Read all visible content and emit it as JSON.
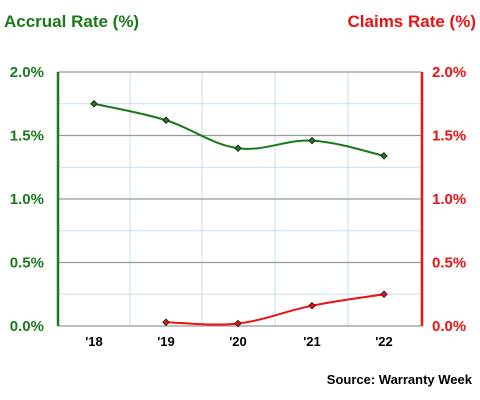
{
  "chart_data": {
    "type": "line",
    "categories": [
      "'18",
      "'19",
      "'20",
      "'21",
      "'22"
    ],
    "series": [
      {
        "name": "Accrual Rate (%)",
        "axis": "left",
        "color": "#1a7a1a",
        "values": [
          1.75,
          1.62,
          1.4,
          1.46,
          1.34
        ]
      },
      {
        "name": "Claims Rate (%)",
        "axis": "right",
        "color": "#ee1111",
        "values": [
          null,
          0.03,
          0.02,
          0.16,
          0.25
        ]
      }
    ],
    "left_title": "Accrual Rate (%)",
    "right_title": "Claims Rate (%)",
    "left_ticks": [
      "0.0%",
      "0.5%",
      "1.0%",
      "1.5%",
      "2.0%"
    ],
    "right_ticks": [
      "0.0%",
      "0.5%",
      "1.0%",
      "1.5%",
      "2.0%"
    ],
    "ylim": [
      0,
      2.0
    ],
    "y_minor_step": 0.25,
    "grid": true,
    "source": "Source: Warranty Week",
    "colors": {
      "left_axis": "#1a7a1a",
      "right_axis": "#ee1111",
      "major_grid": "#999999",
      "minor_grid": "#c7dff0"
    }
  }
}
